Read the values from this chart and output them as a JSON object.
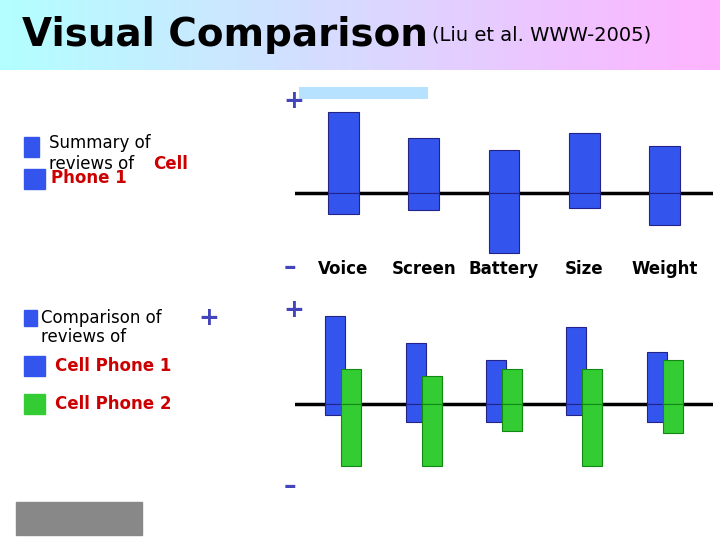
{
  "title_main": "Visual Comparison",
  "title_sub": "(Liu et al. WWW-2005)",
  "title_bg": "#6ecfdc",
  "left_bg": "#8dd8e8",
  "categories": [
    "Voice",
    "Screen",
    "Battery",
    "Size",
    "Weight"
  ],
  "blue": "#3355ee",
  "green": "#33cc33",
  "plus_minus_color": "#4444bb",
  "red_text": "#cc0000",
  "top_bars": {
    "pos": [
      3.8,
      2.6,
      2.0,
      2.8,
      2.2
    ],
    "neg": [
      -1.0,
      -0.8,
      -2.8,
      -0.7,
      -1.5
    ]
  },
  "bot_blue_pos": [
    4.0,
    2.8,
    2.0,
    3.5,
    2.4
  ],
  "bot_blue_neg": [
    -0.5,
    -0.8,
    -0.8,
    -0.5,
    -0.8
  ],
  "bot_green_pos": [
    1.6,
    1.3,
    1.6,
    1.6,
    2.0
  ],
  "bot_green_neg": [
    -2.8,
    -2.8,
    -1.2,
    -2.8,
    -1.3
  ]
}
